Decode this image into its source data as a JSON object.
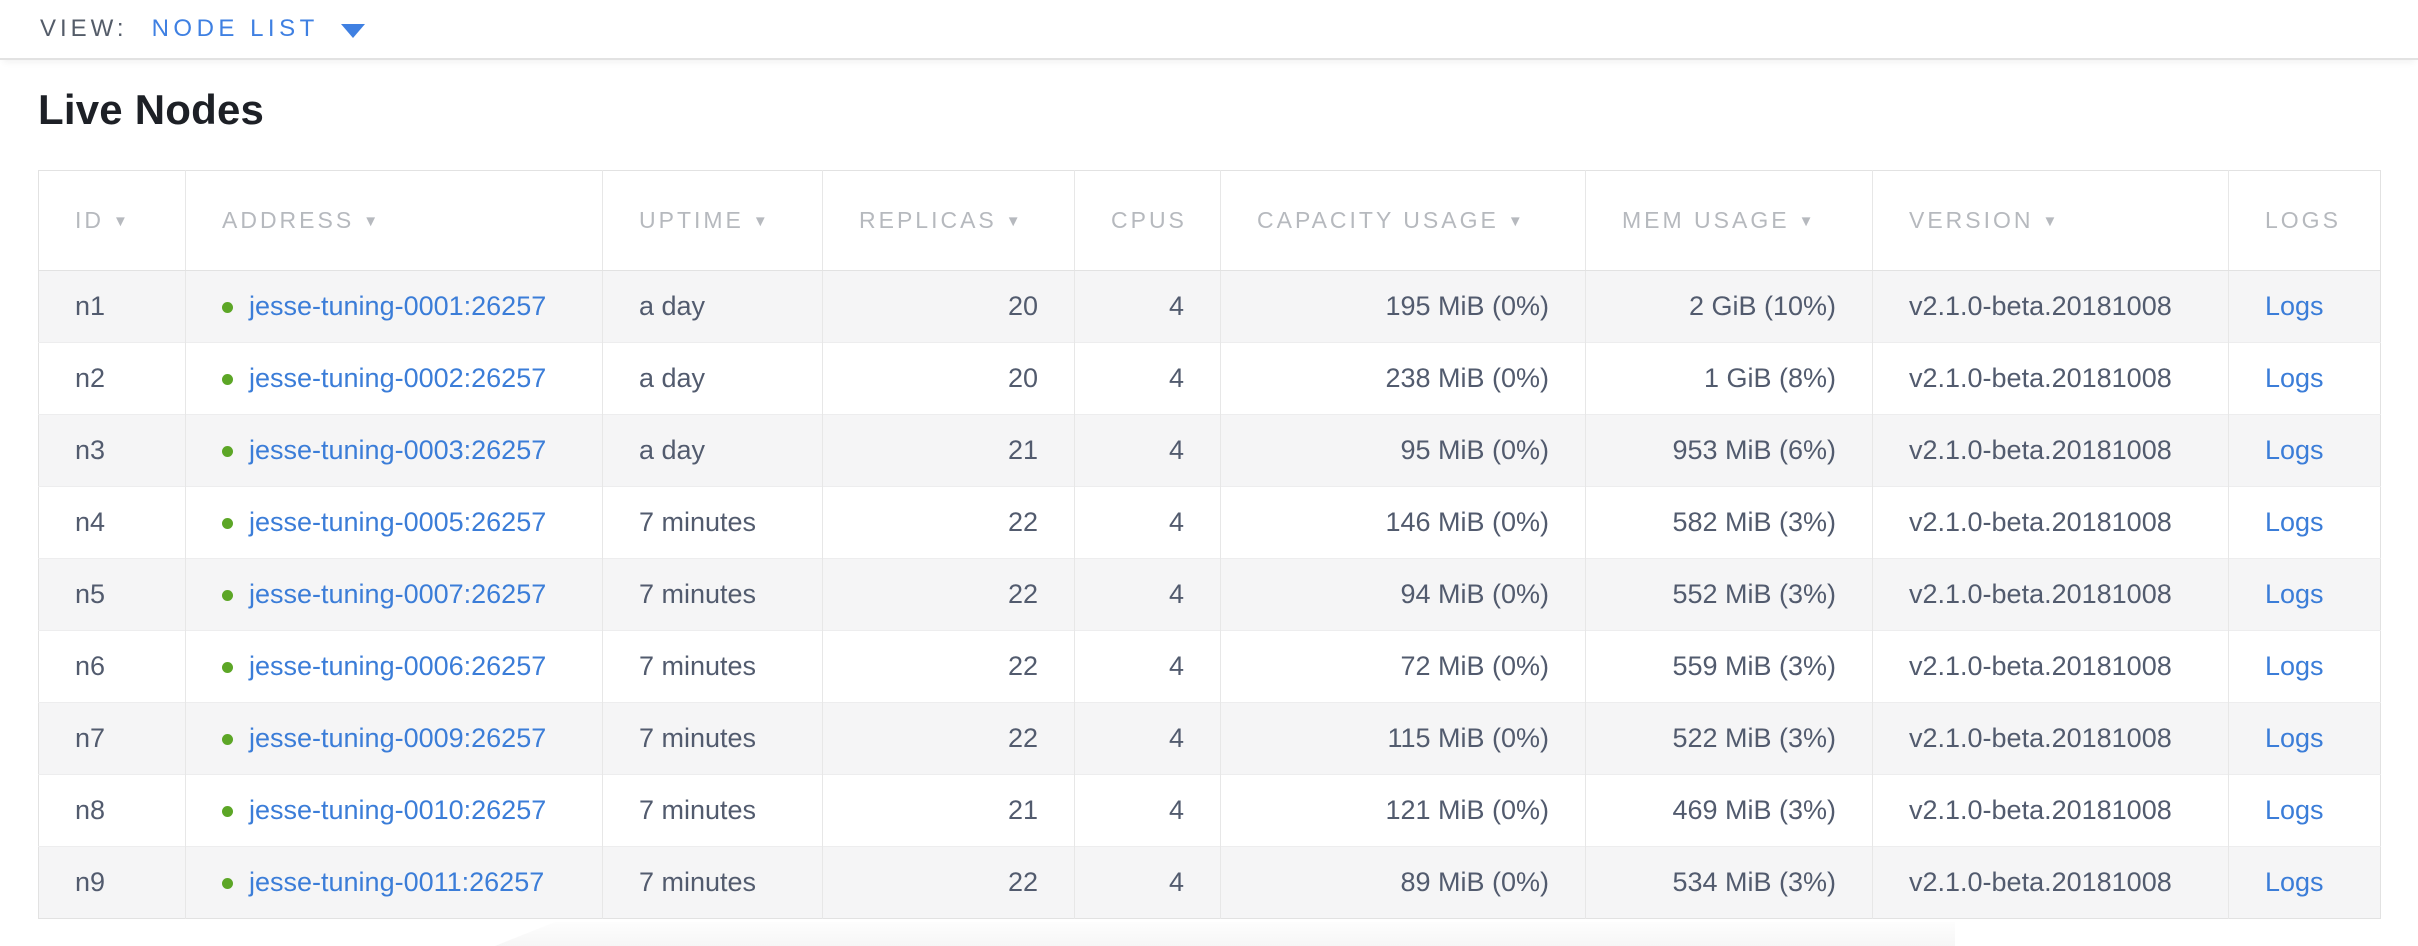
{
  "view_bar": {
    "label": "VIEW:",
    "selected_view": "NODE LIST"
  },
  "page": {
    "title": "Live Nodes"
  },
  "colors": {
    "accent_blue": "#3f80e2",
    "link_blue": "#3b7dd8",
    "live_green": "#5ca626"
  },
  "table": {
    "logs_label": "Logs",
    "columns": [
      {
        "key": "id",
        "label": "ID",
        "sorted": true
      },
      {
        "key": "address",
        "label": "ADDRESS",
        "sorted": true
      },
      {
        "key": "uptime",
        "label": "UPTIME",
        "sorted": true
      },
      {
        "key": "replicas",
        "label": "REPLICAS",
        "sorted": true
      },
      {
        "key": "cpus",
        "label": "CPUS",
        "sorted": false
      },
      {
        "key": "capacity",
        "label": "CAPACITY USAGE",
        "sorted": true
      },
      {
        "key": "mem",
        "label": "MEM USAGE",
        "sorted": true
      },
      {
        "key": "version",
        "label": "VERSION",
        "sorted": true
      },
      {
        "key": "logs",
        "label": "LOGS",
        "sorted": false
      }
    ],
    "rows": [
      {
        "id": "n1",
        "status": "live",
        "address": "jesse-tuning-0001:26257",
        "uptime": "a day",
        "replicas": "20",
        "cpus": "4",
        "capacity": "195 MiB (0%)",
        "mem": "2 GiB (10%)",
        "version": "v2.1.0-beta.20181008"
      },
      {
        "id": "n2",
        "status": "live",
        "address": "jesse-tuning-0002:26257",
        "uptime": "a day",
        "replicas": "20",
        "cpus": "4",
        "capacity": "238 MiB (0%)",
        "mem": "1 GiB (8%)",
        "version": "v2.1.0-beta.20181008"
      },
      {
        "id": "n3",
        "status": "live",
        "address": "jesse-tuning-0003:26257",
        "uptime": "a day",
        "replicas": "21",
        "cpus": "4",
        "capacity": "95 MiB (0%)",
        "mem": "953 MiB (6%)",
        "version": "v2.1.0-beta.20181008"
      },
      {
        "id": "n4",
        "status": "live",
        "address": "jesse-tuning-0005:26257",
        "uptime": "7 minutes",
        "replicas": "22",
        "cpus": "4",
        "capacity": "146 MiB (0%)",
        "mem": "582 MiB (3%)",
        "version": "v2.1.0-beta.20181008"
      },
      {
        "id": "n5",
        "status": "live",
        "address": "jesse-tuning-0007:26257",
        "uptime": "7 minutes",
        "replicas": "22",
        "cpus": "4",
        "capacity": "94 MiB (0%)",
        "mem": "552 MiB (3%)",
        "version": "v2.1.0-beta.20181008"
      },
      {
        "id": "n6",
        "status": "live",
        "address": "jesse-tuning-0006:26257",
        "uptime": "7 minutes",
        "replicas": "22",
        "cpus": "4",
        "capacity": "72 MiB (0%)",
        "mem": "559 MiB (3%)",
        "version": "v2.1.0-beta.20181008"
      },
      {
        "id": "n7",
        "status": "live",
        "address": "jesse-tuning-0009:26257",
        "uptime": "7 minutes",
        "replicas": "22",
        "cpus": "4",
        "capacity": "115 MiB (0%)",
        "mem": "522 MiB (3%)",
        "version": "v2.1.0-beta.20181008"
      },
      {
        "id": "n8",
        "status": "live",
        "address": "jesse-tuning-0010:26257",
        "uptime": "7 minutes",
        "replicas": "21",
        "cpus": "4",
        "capacity": "121 MiB (0%)",
        "mem": "469 MiB (3%)",
        "version": "v2.1.0-beta.20181008"
      },
      {
        "id": "n9",
        "status": "live",
        "address": "jesse-tuning-0011:26257",
        "uptime": "7 minutes",
        "replicas": "22",
        "cpus": "4",
        "capacity": "89 MiB (0%)",
        "mem": "534 MiB (3%)",
        "version": "v2.1.0-beta.20181008"
      }
    ]
  }
}
